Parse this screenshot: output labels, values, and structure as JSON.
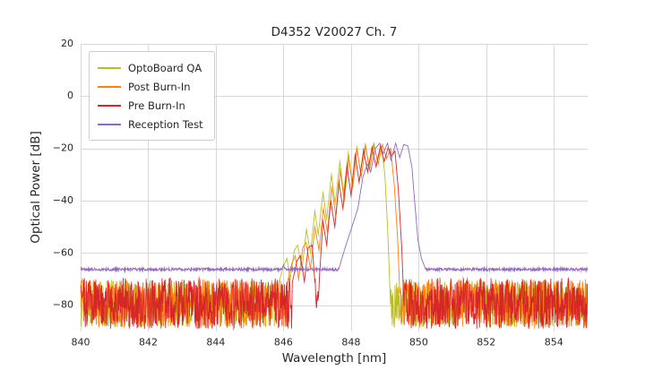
{
  "chart_data": {
    "type": "line",
    "title": "D4352 V20027 Ch. 7",
    "xlabel": "Wavelength [nm]",
    "ylabel": "Optical Power [dB]",
    "xlim": [
      840,
      855
    ],
    "ylim": [
      -90,
      20
    ],
    "xticks": [
      840,
      842,
      844,
      846,
      848,
      850,
      852,
      854
    ],
    "yticks": [
      20,
      0,
      -20,
      -40,
      -60,
      -80
    ],
    "grid": true,
    "grid_color": "#d8d8d8",
    "background": "#ffffff",
    "legend_position": "upper left",
    "series": [
      {
        "name": "OptoBoard QA",
        "color": "#bcbd22",
        "seed": 7,
        "noise": {
          "top": -70.5,
          "bottom": -88.5
        },
        "envelope": [
          [
            845.85,
            -72
          ],
          [
            846.0,
            -65
          ],
          [
            846.1,
            -62
          ],
          [
            846.2,
            -70
          ],
          [
            846.32,
            -59
          ],
          [
            846.42,
            -57
          ],
          [
            846.55,
            -66
          ],
          [
            846.68,
            -51
          ],
          [
            846.8,
            -60
          ],
          [
            846.93,
            -44
          ],
          [
            847.03,
            -53
          ],
          [
            847.17,
            -37
          ],
          [
            847.28,
            -47
          ],
          [
            847.42,
            -30
          ],
          [
            847.53,
            -41
          ],
          [
            847.67,
            -25
          ],
          [
            847.78,
            -37
          ],
          [
            847.92,
            -21.5
          ],
          [
            848.03,
            -33
          ],
          [
            848.17,
            -19.5
          ],
          [
            848.28,
            -29
          ],
          [
            848.42,
            -18.5
          ],
          [
            848.53,
            -27
          ],
          [
            848.67,
            -18
          ],
          [
            848.78,
            -25
          ],
          [
            848.9,
            -19
          ],
          [
            849.0,
            -30
          ],
          [
            849.08,
            -50
          ],
          [
            849.14,
            -70
          ],
          [
            849.2,
            -92
          ]
        ]
      },
      {
        "name": "Post Burn-In",
        "color": "#ff7f0e",
        "seed": 13,
        "noise": {
          "top": -70.0,
          "bottom": -88.5
        },
        "envelope": [
          [
            846.1,
            -72
          ],
          [
            846.25,
            -64
          ],
          [
            846.35,
            -61
          ],
          [
            846.45,
            -70
          ],
          [
            846.57,
            -58
          ],
          [
            846.67,
            -56
          ],
          [
            846.8,
            -66
          ],
          [
            846.93,
            -50
          ],
          [
            847.05,
            -59
          ],
          [
            847.18,
            -43
          ],
          [
            847.3,
            -52
          ],
          [
            847.43,
            -35
          ],
          [
            847.55,
            -46
          ],
          [
            847.68,
            -28.5
          ],
          [
            847.8,
            -40
          ],
          [
            847.93,
            -23.5
          ],
          [
            848.05,
            -35
          ],
          [
            848.18,
            -20.5
          ],
          [
            848.3,
            -31
          ],
          [
            848.43,
            -19
          ],
          [
            848.55,
            -28
          ],
          [
            848.68,
            -18.5
          ],
          [
            848.8,
            -26
          ],
          [
            848.93,
            -18.5
          ],
          [
            849.05,
            -24
          ],
          [
            849.17,
            -20
          ],
          [
            849.28,
            -34
          ],
          [
            849.38,
            -55
          ],
          [
            849.44,
            -75
          ],
          [
            849.5,
            -92
          ]
        ]
      },
      {
        "name": "Pre Burn-In",
        "color": "#d62728",
        "seed": 29,
        "noise": {
          "top": -69.5,
          "bottom": -89.0
        },
        "envelope": [
          [
            846.25,
            -72
          ],
          [
            846.4,
            -63
          ],
          [
            846.5,
            -61
          ],
          [
            846.62,
            -71
          ],
          [
            846.73,
            -58
          ],
          [
            846.85,
            -57
          ],
          [
            846.95,
            -75
          ],
          [
            847.0,
            -88
          ],
          [
            847.07,
            -68
          ],
          [
            847.17,
            -48
          ],
          [
            847.28,
            -57
          ],
          [
            847.4,
            -40
          ],
          [
            847.52,
            -50
          ],
          [
            847.64,
            -33
          ],
          [
            847.76,
            -43
          ],
          [
            847.88,
            -26.5
          ],
          [
            848.0,
            -38
          ],
          [
            848.12,
            -22.5
          ],
          [
            848.24,
            -33
          ],
          [
            848.37,
            -20.5
          ],
          [
            848.49,
            -29
          ],
          [
            848.62,
            -19.5
          ],
          [
            848.74,
            -27
          ],
          [
            848.87,
            -19
          ],
          [
            848.98,
            -25
          ],
          [
            849.1,
            -19.5
          ],
          [
            849.2,
            -23
          ],
          [
            849.3,
            -21
          ],
          [
            849.4,
            -36
          ],
          [
            849.5,
            -58
          ],
          [
            849.56,
            -78
          ],
          [
            849.62,
            -92
          ]
        ]
      },
      {
        "name": "Reception Test",
        "color": "#9467bd",
        "seed": 3,
        "noise": {
          "top": -65.7,
          "bottom": -66.8
        },
        "envelope": [
          [
            845.85,
            -70
          ],
          [
            846.0,
            -64.5
          ],
          [
            846.15,
            -70
          ],
          [
            847.55,
            -70
          ],
          [
            847.8,
            -59
          ],
          [
            848.0,
            -51
          ],
          [
            848.2,
            -43
          ],
          [
            848.35,
            -31
          ],
          [
            848.48,
            -26
          ],
          [
            848.58,
            -29
          ],
          [
            848.72,
            -20
          ],
          [
            848.85,
            -18
          ],
          [
            848.95,
            -22
          ],
          [
            849.08,
            -18
          ],
          [
            849.18,
            -24.5
          ],
          [
            849.32,
            -18
          ],
          [
            849.44,
            -23.5
          ],
          [
            849.56,
            -18.5
          ],
          [
            849.68,
            -19
          ],
          [
            849.8,
            -27
          ],
          [
            849.88,
            -40
          ],
          [
            849.98,
            -55
          ],
          [
            850.08,
            -62
          ],
          [
            850.2,
            -66
          ]
        ]
      }
    ]
  }
}
